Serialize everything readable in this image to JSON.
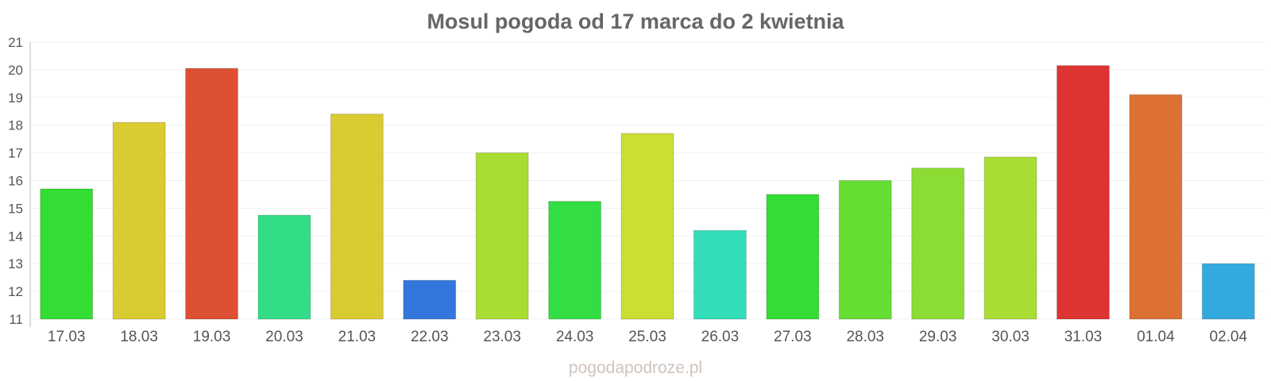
{
  "chart_data": {
    "type": "bar",
    "title": "Mosul pogoda od 17 marca do 2 kwietnia",
    "xlabel": "",
    "ylabel": "",
    "ylim": [
      11,
      21
    ],
    "yticks": [
      11,
      12,
      13,
      14,
      15,
      16,
      17,
      18,
      19,
      20,
      21
    ],
    "grid": true,
    "categories": [
      "17.03",
      "18.03",
      "19.03",
      "20.03",
      "21.03",
      "22.03",
      "23.03",
      "24.03",
      "25.03",
      "26.03",
      "27.03",
      "28.03",
      "29.03",
      "30.03",
      "31.03",
      "01.04",
      "02.04"
    ],
    "values": [
      15.7,
      18.1,
      20.05,
      14.75,
      18.4,
      12.4,
      17.0,
      15.25,
      17.7,
      14.2,
      15.5,
      16.0,
      16.45,
      16.85,
      20.15,
      19.1,
      13.0
    ],
    "colors": [
      "#33dd33",
      "#dbcb32",
      "#dd5033",
      "#33dd88",
      "#dbcb32",
      "#3377dd",
      "#aadd33",
      "#33dd44",
      "#ccdd33",
      "#33ddb8",
      "#33dd33",
      "#66dd33",
      "#8bdd33",
      "#aadd33",
      "#dd3333",
      "#dd7033",
      "#33aadd"
    ]
  },
  "watermark": "pogodapodroze.pl"
}
